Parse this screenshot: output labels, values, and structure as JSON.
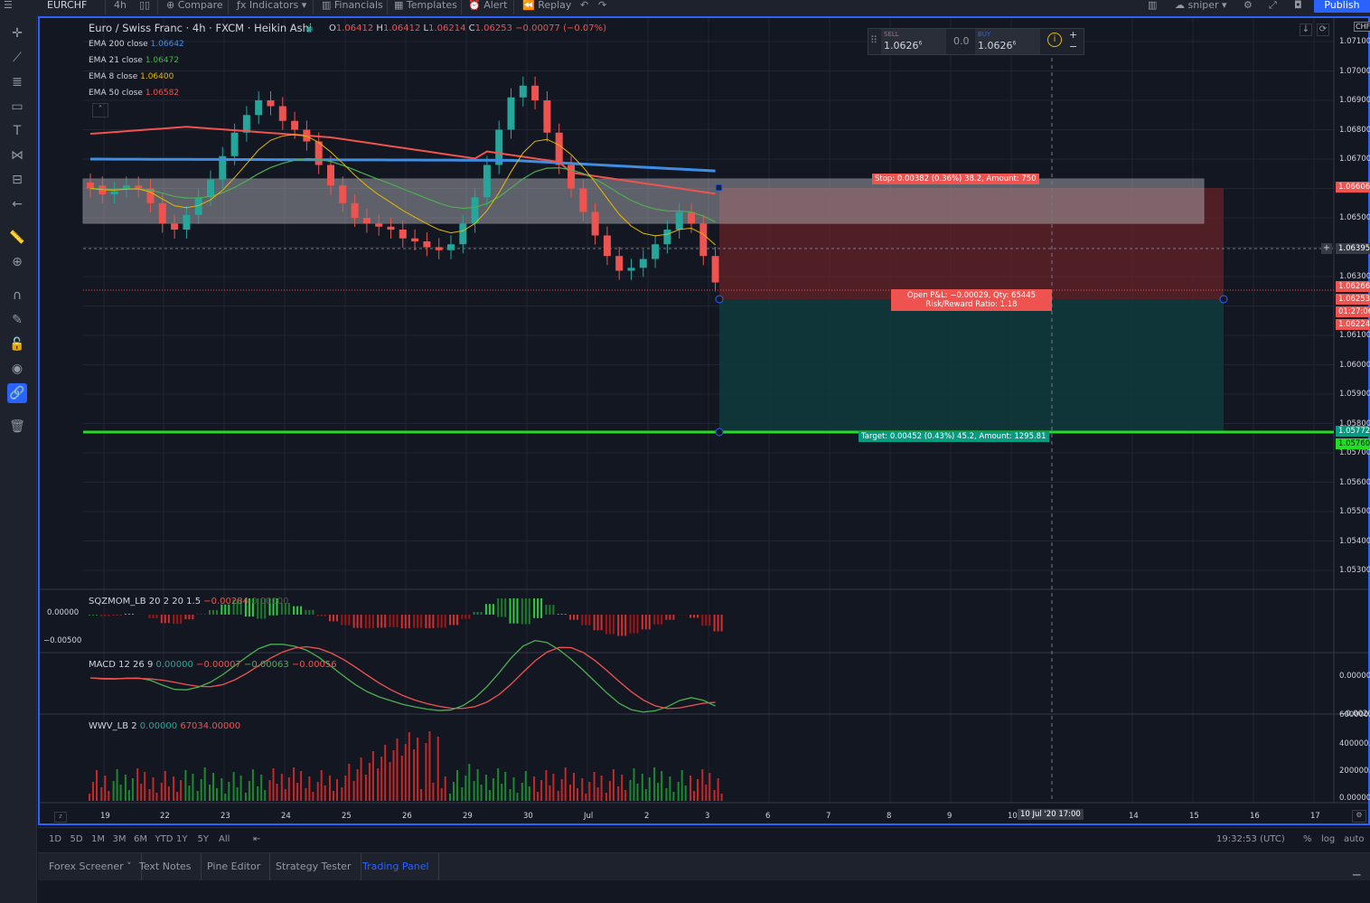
{
  "topbar": {
    "symbol": "EURCHF",
    "interval": "4h",
    "compare": "Compare",
    "indicators": "Indicators",
    "financials": "Financials",
    "templates": "Templates",
    "alert": "Alert",
    "replay": "Replay",
    "layout_name": "sniper",
    "publish": "Publish"
  },
  "legend": {
    "title": "Euro / Swiss Franc · 4h · FXCM · Heikin Ashi",
    "o": "O",
    "o_val": "1.06412",
    "h": "H",
    "h_val": "1.06412",
    "l": "L",
    "l_val": "1.06214",
    "c": "C",
    "c_val": "1.06253",
    "chg": "−0.00077 (−0.07%)",
    "emas": [
      {
        "name": "EMA 200 close",
        "value": "1.06642",
        "color": "#3d8fe5"
      },
      {
        "name": "EMA 21 close",
        "value": "1.06472",
        "color": "#4caf50"
      },
      {
        "name": "EMA 8 close",
        "value": "1.06400",
        "color": "#e6b800"
      },
      {
        "name": "EMA 50 close",
        "value": "1.06582",
        "color": "#ef5350"
      }
    ]
  },
  "trade": {
    "sell_label": "SELL",
    "sell_price": "1.0626",
    "sell_sup": "6",
    "spread": "0.0",
    "buy_label": "BUY",
    "buy_price": "1.0626",
    "buy_sup": "6",
    "plus": "+",
    "minus": "−"
  },
  "position": {
    "stop": "Stop: 0.00382 (0.36%) 38.2, Amount: 750",
    "pnl": "Open P&L: −0.00029, Qty: 65445",
    "rr": "Risk/Reward Ratio: 1.18",
    "target": "Target: 0.00452 (0.43%) 45.2, Amount: 1295.81"
  },
  "price_axis": {
    "currency": "CHF",
    "ticks": [
      "1.07100",
      "1.07000",
      "1.06900",
      "1.06800",
      "1.06700",
      "1.06500",
      "1.06300",
      "1.06100",
      "1.06000",
      "1.05900",
      "1.05800",
      "1.05700",
      "1.05600",
      "1.05500",
      "1.05400",
      "1.05300"
    ],
    "tag_stop": "1.06606",
    "tag_last": "1.06395",
    "tag_a": "1.06266",
    "tag_b": "1.06253",
    "tag_timer": "01:27:06",
    "tag_c": "1.06224",
    "tag_target": "1.05772",
    "tag_target2": "1.05760"
  },
  "time_axis": {
    "ticks": [
      "19",
      "22",
      "23",
      "24",
      "25",
      "26",
      "29",
      "30",
      "Jul",
      "2",
      "3",
      "6",
      "7",
      "8",
      "9",
      "10",
      "14",
      "15",
      "16",
      "17"
    ],
    "crosshair": "10 Jul '20   17:00"
  },
  "pane_sqz": {
    "label": "SQZMOM_LB 20 2 20 1.5",
    "v1": "−0.00284",
    "v2": "0.00000",
    "ticks": [
      "0.00000",
      "−0.00500"
    ]
  },
  "pane_macd": {
    "label": "MACD 12 26 9",
    "v1": "0.00000",
    "v2": "−0.00007",
    "v3": "−0.00063",
    "v4": "−0.00056",
    "ticks": [
      "0.00000",
      "−0.00200"
    ]
  },
  "pane_wvv": {
    "label": "WWV_LB 2",
    "v1": "0.00000",
    "v2": "67034.00000",
    "ticks": [
      "600000.0",
      "400000.0",
      "200000.0",
      "0.00000"
    ]
  },
  "bottom": {
    "ranges": [
      "1D",
      "5D",
      "1M",
      "3M",
      "6M",
      "YTD",
      "1Y",
      "5Y",
      "All"
    ],
    "clock": "19:32:53 (UTC)",
    "pct": "%",
    "log": "log",
    "auto": "auto"
  },
  "tabs": [
    "Forex Screener",
    "Text Notes",
    "Pine Editor",
    "Strategy Tester",
    "Trading Panel"
  ],
  "colors": {
    "up": "#26a69a",
    "down": "#ef5350",
    "accent": "#2962ff",
    "target": "#22ff22"
  }
}
